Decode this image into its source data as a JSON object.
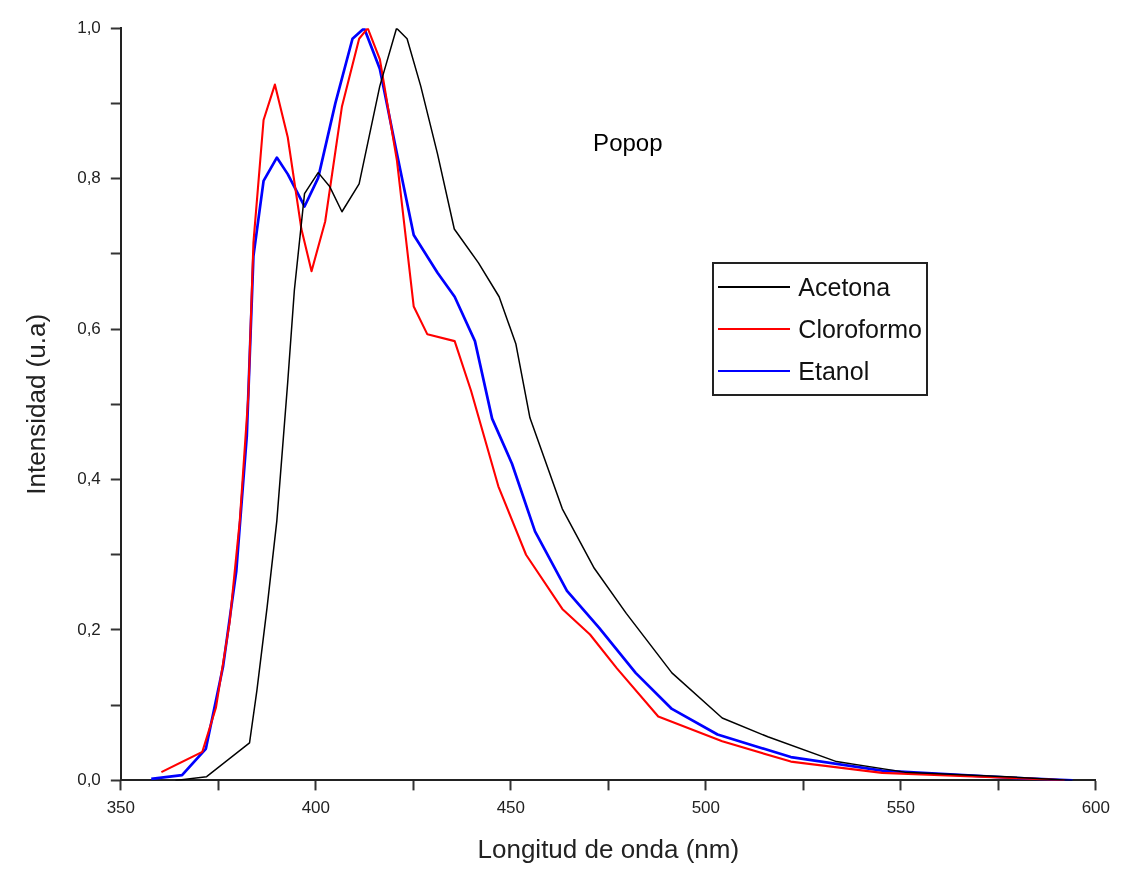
{
  "chart_data": {
    "type": "line",
    "xlabel": "Longitud de onda (nm)",
    "ylabel": "Intensidad (u.a)",
    "annotations": [
      "Popop"
    ],
    "xlim": [
      350,
      600
    ],
    "xticks": [
      350,
      {
        "value": 375,
        "label": null
      },
      400,
      {
        "value": 425,
        "label": null
      },
      450,
      {
        "value": 475,
        "label": null
      },
      500,
      {
        "value": 525,
        "label": null
      },
      550,
      {
        "value": 575,
        "label": null
      },
      600
    ],
    "ylim": [
      0,
      1
    ],
    "yticks": [
      {
        "value": 0,
        "label": "0,0"
      },
      {
        "value": 0.1,
        "label": null
      },
      {
        "value": 0.2,
        "label": "0,2"
      },
      {
        "value": 0.3,
        "label": null
      },
      {
        "value": 0.4,
        "label": "0,4"
      },
      {
        "value": 0.5,
        "label": null
      },
      {
        "value": 0.6,
        "label": "0,6"
      },
      {
        "value": 0.7,
        "label": null
      },
      {
        "value": 0.8,
        "label": "0,8"
      },
      {
        "value": 0.9,
        "label": null
      },
      {
        "value": 1,
        "label": "1,0"
      }
    ],
    "grid": false,
    "legend": "top right",
    "marker": "none",
    "line_style": "solid",
    "series": [
      {
        "name": "Acetona",
        "color": "#000000",
        "x": [
          364,
          372,
          383,
          384.9,
          387.5,
          390,
          392.8,
          394.5,
          397.1,
          400.6,
          403.5,
          406.7,
          411.1,
          416.4,
          420.7,
          423.4,
          426.9,
          431.2,
          435.5,
          441.7,
          447,
          451.3,
          454.9,
          463.2,
          471.4,
          479.6,
          491.3,
          504.2,
          515.9,
          533.5,
          551,
          580.3,
          594
        ],
        "values": [
          0,
          0.005,
          0.05,
          0.12,
          0.23,
          0.345,
          0.53,
          0.652,
          0.78,
          0.808,
          0.79,
          0.756,
          0.793,
          0.923,
          1.0,
          0.986,
          0.923,
          0.833,
          0.733,
          0.688,
          0.643,
          0.58,
          0.482,
          0.361,
          0.282,
          0.222,
          0.143,
          0.083,
          0.058,
          0.025,
          0.011,
          0.004,
          0
        ]
      },
      {
        "name": "Cloroformo",
        "color": "#ff0000",
        "x": [
          360.4,
          370.9,
          374.4,
          377.9,
          380.5,
          382.7,
          384,
          386.6,
          389.5,
          392.8,
          396.3,
          398.9,
          402.4,
          406.7,
          411.1,
          413.3,
          416.4,
          420.8,
          425.1,
          428.6,
          435.6,
          439.8,
          446.8,
          453.9,
          463.2,
          470.3,
          477.2,
          487.8,
          504.2,
          521.8,
          545.2,
          580.3,
          592
        ],
        "values": [
          0.011,
          0.038,
          0.097,
          0.21,
          0.345,
          0.512,
          0.715,
          0.878,
          0.925,
          0.855,
          0.733,
          0.677,
          0.743,
          0.896,
          0.986,
          1.0,
          0.959,
          0.824,
          0.63,
          0.593,
          0.584,
          0.518,
          0.391,
          0.3,
          0.228,
          0.194,
          0.149,
          0.085,
          0.052,
          0.025,
          0.01,
          0.003,
          0
        ]
      },
      {
        "name": "Etanol",
        "color": "#0000ff",
        "x": [
          357.8,
          365.7,
          371.8,
          376.2,
          379.6,
          382.3,
          384,
          386.6,
          390,
          392.8,
          397.1,
          400.6,
          405,
          409.4,
          412.4,
          416.4,
          420.8,
          425.1,
          431.2,
          435.6,
          440.8,
          445.2,
          450.3,
          456.2,
          464.4,
          472.6,
          482,
          491.3,
          503,
          521.8,
          545.2,
          580.3,
          594
        ],
        "values": [
          0.002,
          0.007,
          0.042,
          0.151,
          0.278,
          0.458,
          0.697,
          0.797,
          0.828,
          0.806,
          0.763,
          0.801,
          0.9,
          0.986,
          1.0,
          0.946,
          0.833,
          0.725,
          0.675,
          0.643,
          0.584,
          0.481,
          0.421,
          0.331,
          0.252,
          0.203,
          0.143,
          0.095,
          0.061,
          0.031,
          0.013,
          0.003,
          0
        ]
      }
    ]
  }
}
